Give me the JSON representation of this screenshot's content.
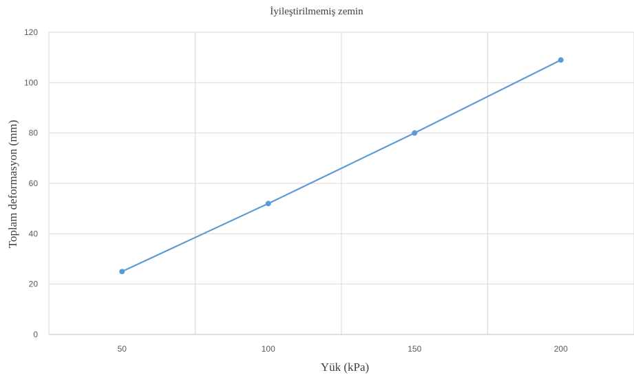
{
  "chart_data": {
    "type": "line",
    "title": "İyileştirilmemiş zemin",
    "xlabel": "Yük (kPa)",
    "ylabel": "Toplam deformasyon (mm)",
    "categories": [
      "50",
      "100",
      "150",
      "200"
    ],
    "series": [
      {
        "values": [
          25,
          52,
          80,
          109
        ],
        "color": "#5b9bd5"
      }
    ],
    "ylim": [
      0,
      120
    ],
    "yticks": [
      0,
      20,
      40,
      60,
      80,
      100,
      120
    ],
    "grid": true,
    "legend": "none",
    "markers": true
  }
}
